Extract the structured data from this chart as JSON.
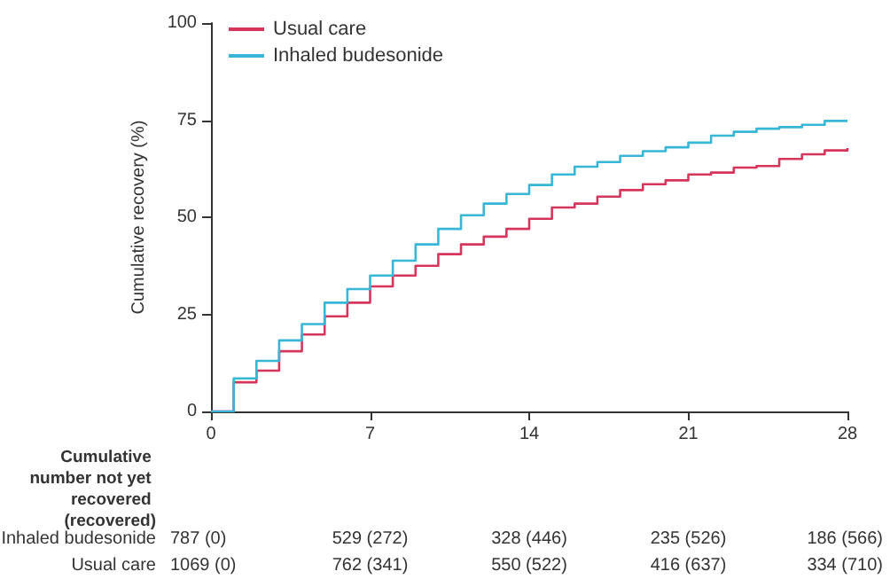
{
  "chart_data": {
    "type": "step",
    "ylabel": "Cumulative recovery (%)",
    "xlim": [
      0,
      28
    ],
    "xticks": [
      0,
      7,
      14,
      21,
      28
    ],
    "ylim": [
      0,
      100
    ],
    "yticks": [
      0,
      25,
      50,
      75,
      100
    ],
    "legend": "top left",
    "grid": false,
    "x": [
      0,
      1,
      2,
      3,
      4,
      5,
      6,
      7,
      8,
      9,
      10,
      11,
      12,
      13,
      14,
      15,
      16,
      17,
      18,
      19,
      20,
      21,
      22,
      23,
      24,
      25,
      26,
      27,
      28
    ],
    "series": [
      {
        "name": "Usual care",
        "color": "#d6365b",
        "values": [
          0,
          7.5,
          10.5,
          15.5,
          19.8,
          24.5,
          28,
          32.2,
          35,
          37.5,
          40.5,
          43,
          45,
          47,
          49.6,
          52.5,
          53.5,
          55.3,
          57,
          58.5,
          59.5,
          61,
          61.5,
          62.8,
          63.2,
          65,
          66.2,
          67.2,
          67.8
        ]
      },
      {
        "name": "Inhaled budesonide",
        "color": "#38b6d8",
        "values": [
          0,
          8.5,
          13,
          18.3,
          22.5,
          28,
          31.5,
          35,
          38.8,
          43,
          47,
          50.5,
          53.5,
          56,
          58.3,
          61,
          63,
          64.2,
          65.8,
          67,
          68,
          69.2,
          71,
          72,
          72.8,
          73.2,
          73.8,
          74.8,
          74.8
        ]
      }
    ],
    "annotations": [
      "Cumulative number not yet recovered (recovered)",
      "Inhaled budesonide",
      "787 (0)",
      "529 (272)",
      "328 (446)",
      "235 (526)",
      "186 (566)",
      "Usual care",
      "1069 (0)",
      "762 (341)",
      "550 (522)",
      "416 (637)",
      "334 (710)"
    ]
  }
}
